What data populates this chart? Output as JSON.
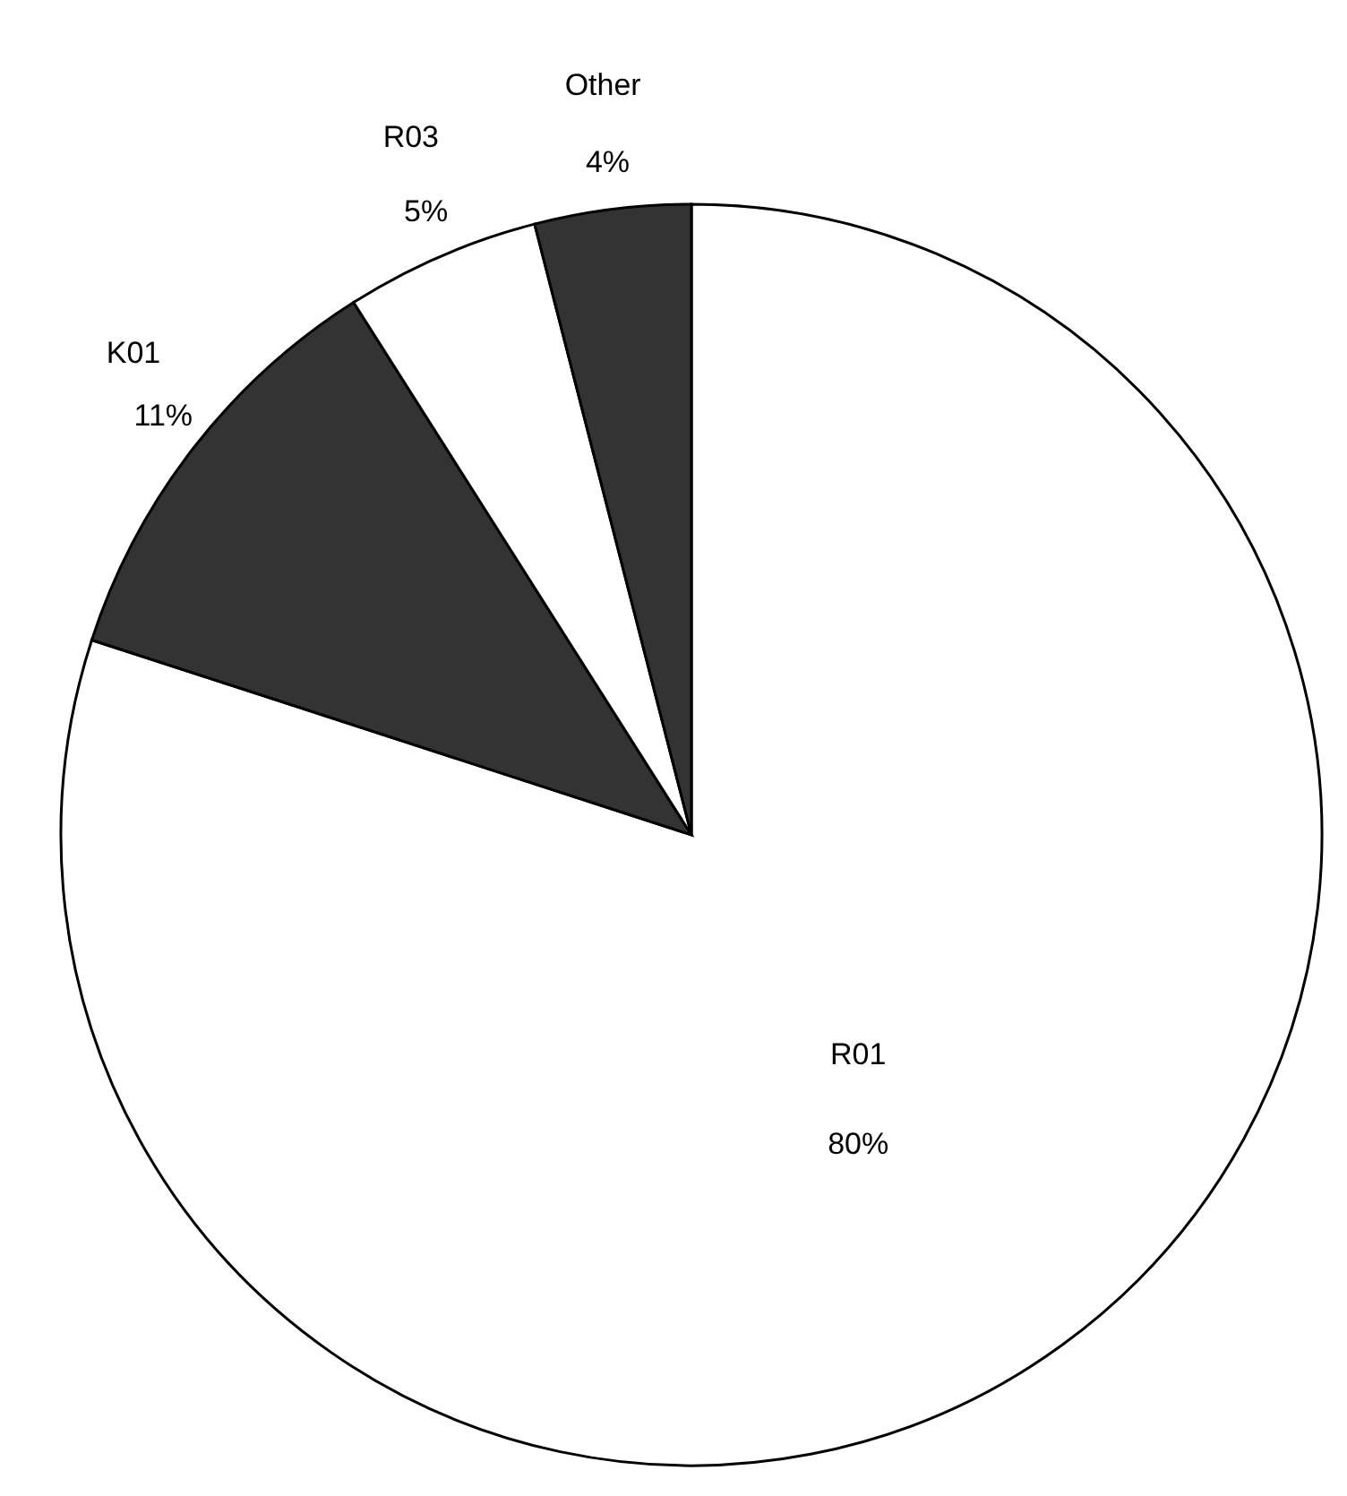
{
  "chart_data": {
    "type": "pie",
    "categories": [
      "R01",
      "K01",
      "R03",
      "Other"
    ],
    "values": [
      80,
      11,
      5,
      4
    ],
    "colors": [
      "#ffffff",
      "#333333",
      "#ffffff",
      "#333333"
    ],
    "value_labels": [
      "80%",
      "11%",
      "5%",
      "4%"
    ]
  }
}
